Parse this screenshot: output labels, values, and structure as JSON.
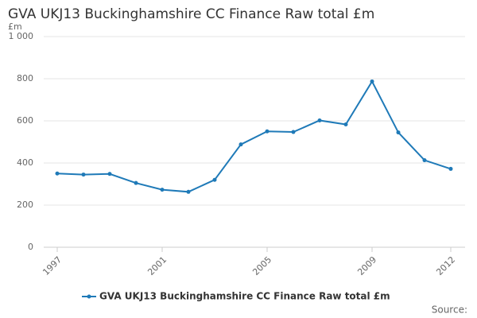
{
  "chart_data": {
    "type": "line",
    "title": "GVA UKJ13 Buckinghamshire CC Finance Raw total £m",
    "y_unit_label": "£m",
    "x": [
      1997,
      1998,
      1999,
      2000,
      2001,
      2002,
      2003,
      2004,
      2005,
      2006,
      2007,
      2008,
      2009,
      2010,
      2011,
      2012
    ],
    "series": [
      {
        "name": "GVA UKJ13 Buckinghamshire CC Finance Raw total £m",
        "color": "#1f7ab8",
        "values": [
          350,
          345,
          348,
          305,
          273,
          263,
          320,
          488,
          550,
          547,
          602,
          583,
          787,
          545,
          413,
          372
        ]
      }
    ],
    "xlim": [
      1997,
      2012
    ],
    "xticks": [
      1997,
      2001,
      2005,
      2009,
      2012
    ],
    "ylim": [
      0,
      1000
    ],
    "yticks": [
      0,
      200,
      400,
      600,
      {
        "value": 1000,
        "label": "1 000"
      },
      800
    ],
    "grid": true,
    "source": "Source:"
  }
}
